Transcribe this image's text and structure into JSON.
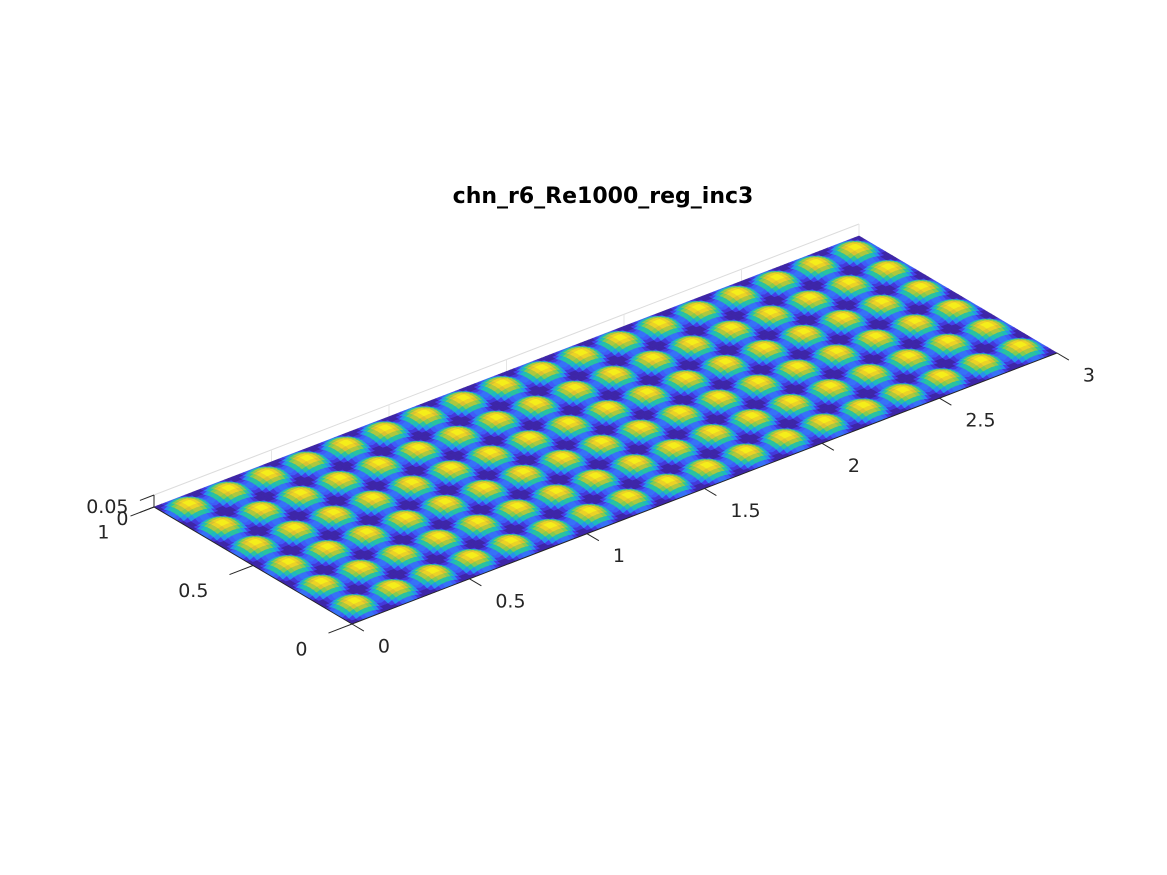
{
  "chart_data": {
    "type": "surface",
    "title": "chn_r6_Re1000_reg_inc3",
    "xlabel": "",
    "ylabel": "",
    "zlabel": "",
    "xlim": [
      0,
      3
    ],
    "ylim": [
      0,
      1
    ],
    "zlim": [
      0,
      0.05
    ],
    "x_ticks": [
      "0",
      "0.5",
      "1",
      "1.5",
      "2",
      "2.5",
      "3"
    ],
    "y_ticks": [
      "0",
      "0.5",
      "1"
    ],
    "z_ticks": [
      "0",
      "0.05"
    ],
    "grid": true,
    "colormap": "parula",
    "colormap_stops": [
      "#3e26a8",
      "#4743f8",
      "#2e87f7",
      "#16b3d4",
      "#2bc49b",
      "#8bcc4a",
      "#e6bf2e",
      "#f9fb14"
    ],
    "cells_x": 18,
    "cells_y": 6,
    "peak_value": 0.05
  }
}
